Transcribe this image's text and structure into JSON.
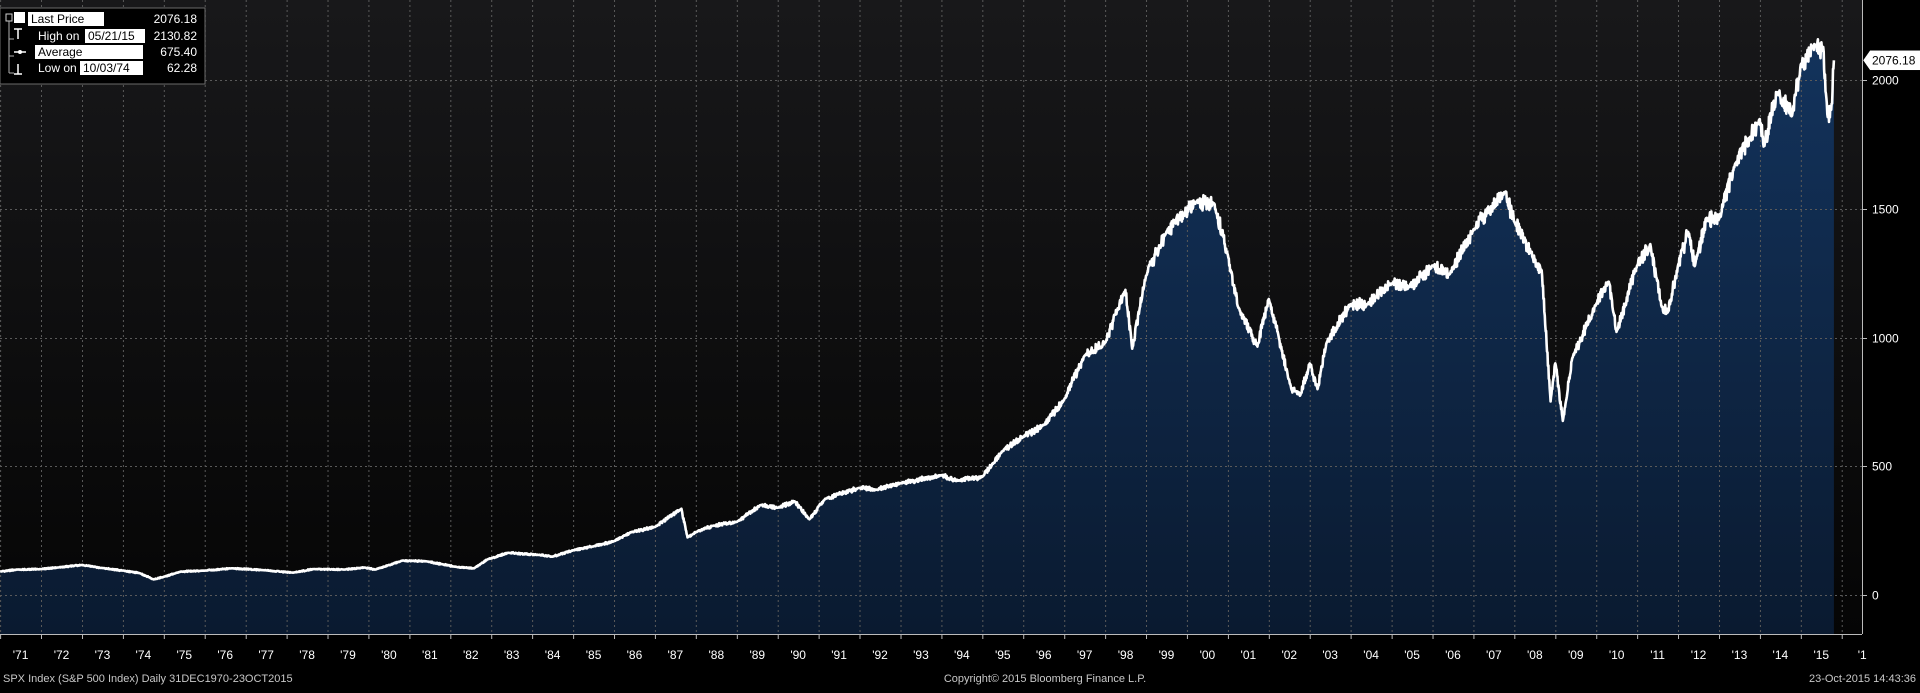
{
  "legend": {
    "last_price_label": "Last Price",
    "last_price_value": "2076.18",
    "high_label_prefix": "High on",
    "high_date": "05/21/15",
    "high_value": "2130.82",
    "average_label": "Average",
    "average_value": "675.40",
    "low_label_prefix": "Low on",
    "low_date": "10/03/74",
    "low_value": "62.28"
  },
  "footer": {
    "left": "SPX Index (S&P 500 Index)  Daily 31DEC1970-23OCT2015",
    "center": "Copyright© 2015 Bloomberg Finance L.P.",
    "right": "23-Oct-2015 14:43:36"
  },
  "last_price_tag": "2076.18",
  "colors": {
    "background_top": "#18181a",
    "background_bottom": "#050505",
    "area_top": "#13335c",
    "area_bottom": "#0a1a30",
    "line": "#ffffff",
    "grid": "#5a5a5a",
    "text": "#ffffff",
    "subtext": "#c8c8c8"
  },
  "chart_data": {
    "type": "area",
    "title": "",
    "xlabel": "",
    "ylabel": "",
    "ylim": [
      -150,
      2310
    ],
    "xlim": [
      "1970-12-31",
      "2016-06-30"
    ],
    "y_ticks": [
      0,
      500,
      1000,
      1500,
      2000
    ],
    "x_ticks": [
      "'71",
      "'72",
      "'73",
      "'74",
      "'75",
      "'76",
      "'77",
      "'78",
      "'79",
      "'80",
      "'81",
      "'82",
      "'83",
      "'84",
      "'85",
      "'86",
      "'87",
      "'88",
      "'89",
      "'90",
      "'91",
      "'92",
      "'93",
      "'94",
      "'95",
      "'96",
      "'97",
      "'98",
      "'99",
      "'00",
      "'01",
      "'02",
      "'03",
      "'04",
      "'05",
      "'06",
      "'07",
      "'08",
      "'09",
      "'10",
      "'11",
      "'12",
      "'13",
      "'14",
      "'15",
      "'1"
    ],
    "grid": true,
    "last_value_label": "2076.18",
    "series": [
      {
        "name": "SPX Index",
        "points": [
          [
            "1971-01-01",
            92
          ],
          [
            "1971-06-01",
            100
          ],
          [
            "1972-01-01",
            102
          ],
          [
            "1972-06-01",
            108
          ],
          [
            "1973-01-01",
            118
          ],
          [
            "1973-07-01",
            106
          ],
          [
            "1974-01-01",
            96
          ],
          [
            "1974-06-01",
            86
          ],
          [
            "1974-10-03",
            62
          ],
          [
            "1975-01-01",
            72
          ],
          [
            "1975-06-01",
            92
          ],
          [
            "1976-01-01",
            96
          ],
          [
            "1976-09-01",
            105
          ],
          [
            "1977-06-01",
            98
          ],
          [
            "1978-03-01",
            88
          ],
          [
            "1978-09-01",
            102
          ],
          [
            "1979-06-01",
            100
          ],
          [
            "1979-12-01",
            108
          ],
          [
            "1980-03-01",
            100
          ],
          [
            "1980-11-01",
            135
          ],
          [
            "1981-06-01",
            132
          ],
          [
            "1982-03-01",
            110
          ],
          [
            "1982-08-01",
            105
          ],
          [
            "1982-12-01",
            140
          ],
          [
            "1983-06-01",
            165
          ],
          [
            "1984-03-01",
            157
          ],
          [
            "1984-07-01",
            150
          ],
          [
            "1985-01-01",
            175
          ],
          [
            "1985-07-01",
            190
          ],
          [
            "1986-01-01",
            210
          ],
          [
            "1986-06-01",
            245
          ],
          [
            "1987-01-01",
            265
          ],
          [
            "1987-08-25",
            336
          ],
          [
            "1987-10-19",
            225
          ],
          [
            "1988-01-01",
            245
          ],
          [
            "1988-06-01",
            270
          ],
          [
            "1989-01-01",
            285
          ],
          [
            "1989-08-01",
            350
          ],
          [
            "1990-01-01",
            340
          ],
          [
            "1990-06-01",
            365
          ],
          [
            "1990-10-11",
            295
          ],
          [
            "1991-03-01",
            375
          ],
          [
            "1991-12-31",
            417
          ],
          [
            "1992-06-01",
            410
          ],
          [
            "1993-01-01",
            435
          ],
          [
            "1993-12-31",
            466
          ],
          [
            "1994-06-01",
            445
          ],
          [
            "1995-01-01",
            460
          ],
          [
            "1995-07-01",
            560
          ],
          [
            "1996-01-01",
            615
          ],
          [
            "1996-07-01",
            660
          ],
          [
            "1997-01-01",
            760
          ],
          [
            "1997-07-01",
            930
          ],
          [
            "1998-01-01",
            980
          ],
          [
            "1998-07-01",
            1185
          ],
          [
            "1998-08-31",
            957
          ],
          [
            "1999-01-01",
            1240
          ],
          [
            "1999-07-01",
            1410
          ],
          [
            "2000-03-24",
            1527
          ],
          [
            "2000-09-01",
            1520
          ],
          [
            "2001-01-01",
            1320
          ],
          [
            "2001-04-01",
            1120
          ],
          [
            "2001-09-21",
            965
          ],
          [
            "2002-01-01",
            1150
          ],
          [
            "2002-07-23",
            797
          ],
          [
            "2002-10-09",
            776
          ],
          [
            "2003-01-01",
            900
          ],
          [
            "2003-03-11",
            800
          ],
          [
            "2003-06-01",
            980
          ],
          [
            "2004-01-01",
            1130
          ],
          [
            "2004-06-01",
            1130
          ],
          [
            "2005-01-01",
            1210
          ],
          [
            "2005-06-01",
            1195
          ],
          [
            "2006-01-01",
            1280
          ],
          [
            "2006-06-01",
            1245
          ],
          [
            "2007-01-01",
            1420
          ],
          [
            "2007-10-09",
            1565
          ],
          [
            "2008-01-01",
            1450
          ],
          [
            "2008-06-01",
            1330
          ],
          [
            "2008-09-01",
            1260
          ],
          [
            "2008-11-20",
            752
          ],
          [
            "2009-01-01",
            900
          ],
          [
            "2009-03-09",
            677
          ],
          [
            "2009-06-01",
            920
          ],
          [
            "2010-01-01",
            1130
          ],
          [
            "2010-04-23",
            1217
          ],
          [
            "2010-07-01",
            1022
          ],
          [
            "2011-01-01",
            1280
          ],
          [
            "2011-04-29",
            1363
          ],
          [
            "2011-08-08",
            1120
          ],
          [
            "2011-10-03",
            1099
          ],
          [
            "2012-01-01",
            1280
          ],
          [
            "2012-04-01",
            1410
          ],
          [
            "2012-06-01",
            1280
          ],
          [
            "2012-09-14",
            1465
          ],
          [
            "2013-01-01",
            1460
          ],
          [
            "2013-05-21",
            1669
          ],
          [
            "2013-12-31",
            1848
          ],
          [
            "2014-02-03",
            1741
          ],
          [
            "2014-06-01",
            1950
          ],
          [
            "2014-10-15",
            1862
          ],
          [
            "2014-12-31",
            2059
          ],
          [
            "2015-05-21",
            2131
          ],
          [
            "2015-07-20",
            2128
          ],
          [
            "2015-08-25",
            1867
          ],
          [
            "2015-09-29",
            1884
          ],
          [
            "2015-10-23",
            2076
          ]
        ]
      }
    ]
  }
}
